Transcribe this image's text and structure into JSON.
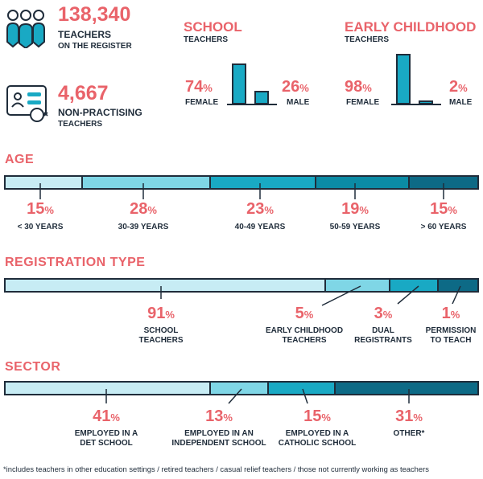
{
  "summary": {
    "teachers_count": "138,340",
    "teachers_label_1": "TEACHERS",
    "teachers_label_2": "ON THE REGISTER",
    "nonprac_count": "4,667",
    "nonprac_label_1": "NON-PRACTISING",
    "nonprac_label_2": "TEACHERS"
  },
  "school": {
    "title": "SCHOOL",
    "subtitle": "TEACHERS",
    "female_value": "74",
    "female_label": "FEMALE",
    "male_value": "26",
    "male_label": "MALE",
    "unit": "%"
  },
  "early": {
    "title": "EARLY CHILDHOOD",
    "subtitle": "TEACHERS",
    "female_value": "98",
    "female_label": "FEMALE",
    "male_value": "2",
    "male_label": "MALE",
    "unit": "%"
  },
  "age": {
    "title": "AGE",
    "items": [
      {
        "value": "15",
        "label": "< 30 YEARS"
      },
      {
        "value": "28",
        "label": "30-39 YEARS"
      },
      {
        "value": "23",
        "label": "40-49 YEARS"
      },
      {
        "value": "19",
        "label": "50-59 YEARS"
      },
      {
        "value": "15",
        "label": "> 60 YEARS"
      }
    ]
  },
  "registration": {
    "title": "REGISTRATION TYPE",
    "items": [
      {
        "value": "91",
        "label1": "SCHOOL",
        "label2": "TEACHERS"
      },
      {
        "value": "5",
        "label1": "EARLY CHILDHOOD",
        "label2": "TEACHERS"
      },
      {
        "value": "3",
        "label1": "DUAL",
        "label2": "REGISTRANTS"
      },
      {
        "value": "1",
        "label1": "PERMISSION",
        "label2": "TO TEACH"
      }
    ]
  },
  "sector": {
    "title": "SECTOR",
    "items": [
      {
        "value": "41",
        "label1": "EMPLOYED IN A",
        "label2": "DET SCHOOL"
      },
      {
        "value": "13",
        "label1": "EMPLOYED IN AN",
        "label2": "INDEPENDENT SCHOOL"
      },
      {
        "value": "15",
        "label1": "EMPLOYED IN A",
        "label2": "CATHOLIC SCHOOL"
      },
      {
        "value": "31",
        "label1": "OTHER*",
        "label2": ""
      }
    ]
  },
  "footnote": "*includes teachers in other education settings / retired teachers / casual relief  teachers / those not currently working as teachers",
  "colors": {
    "accent": "#e9636a",
    "dark": "#1f2c3a",
    "shade1": "#c7ecf4",
    "shade2": "#7fd6e6",
    "shade3": "#19a9c4",
    "shade4": "#0b8ba5",
    "shade5": "#0d6a86"
  }
}
